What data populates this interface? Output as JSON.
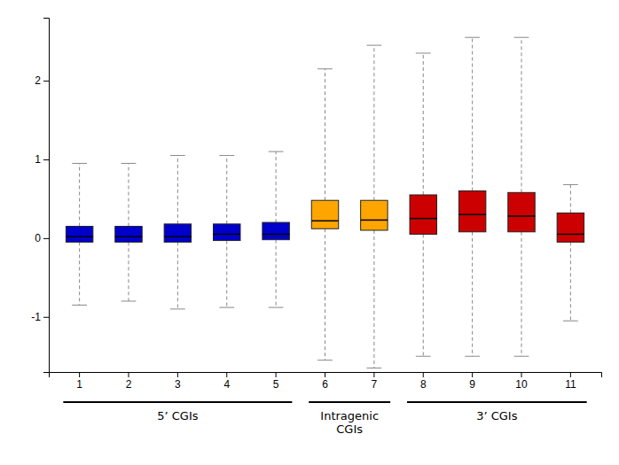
{
  "chart_data": {
    "type": "box",
    "categories": [
      "1",
      "2",
      "3",
      "4",
      "5",
      "6",
      "7",
      "8",
      "9",
      "10",
      "11"
    ],
    "q1": [
      -0.05,
      -0.05,
      -0.05,
      -0.03,
      -0.02,
      0.12,
      0.1,
      0.05,
      0.08,
      0.08,
      -0.05
    ],
    "median": [
      0.02,
      0.02,
      0.02,
      0.05,
      0.05,
      0.22,
      0.23,
      0.25,
      0.3,
      0.28,
      0.05
    ],
    "q3": [
      0.15,
      0.15,
      0.18,
      0.18,
      0.2,
      0.48,
      0.48,
      0.55,
      0.6,
      0.58,
      0.32
    ],
    "whisker_low": [
      -0.85,
      -0.8,
      -0.9,
      -0.88,
      -0.88,
      -1.55,
      -1.65,
      -1.5,
      -1.5,
      -1.5,
      -1.05
    ],
    "whisker_high": [
      0.95,
      0.95,
      1.05,
      1.05,
      1.1,
      2.15,
      2.45,
      2.35,
      2.55,
      2.55,
      0.68
    ],
    "colors": [
      "#0000CC",
      "#0000CC",
      "#0000CC",
      "#0000CC",
      "#0000CC",
      "#FFA500",
      "#FFA500",
      "#CC0000",
      "#CC0000",
      "#CC0000",
      "#CC0000"
    ],
    "ylim": [
      -1.7,
      2.8
    ],
    "yticks": [
      -1,
      0,
      1,
      2
    ],
    "grid": false,
    "groups": [
      {
        "label": "5’ CGIs",
        "from": "1",
        "to": "5"
      },
      {
        "label": "Intragenic\nCGIs",
        "from": "6",
        "to": "7"
      },
      {
        "label": "3’ CGIs",
        "from": "8",
        "to": "11"
      }
    ]
  }
}
